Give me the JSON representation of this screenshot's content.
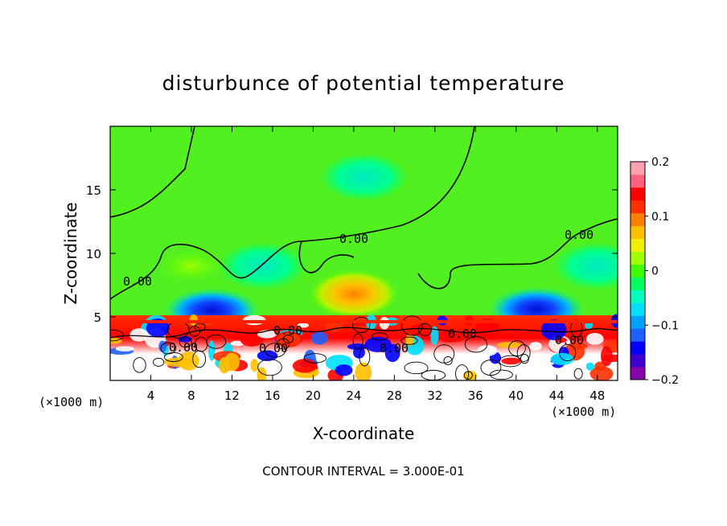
{
  "chart_data": {
    "type": "heatmap",
    "title": "disturbunce of potential temperature",
    "xlabel": "X-coordinate",
    "ylabel": "Z-coordinate",
    "x_unit": "(×1000 m)",
    "x_unit_right": "(×1000 m)",
    "footer": "CONTOUR INTERVAL = 3.000E-01",
    "xlim": [
      0,
      50
    ],
    "ylim": [
      0,
      20
    ],
    "x_ticks": [
      4,
      8,
      12,
      16,
      20,
      24,
      28,
      32,
      36,
      40,
      44,
      48
    ],
    "x_tick_labels": [
      "4",
      "8",
      "12",
      "16",
      "20",
      "24",
      "28",
      "32",
      "36",
      "40",
      "44",
      "48"
    ],
    "y_ticks": [
      5,
      10,
      15
    ],
    "y_tick_labels": [
      "5",
      "10",
      "15"
    ],
    "colorbar": {
      "range": [
        -0.2,
        0.2
      ],
      "ticks": [
        0.2,
        0.1,
        0,
        -0.1,
        -0.2
      ],
      "tick_labels": [
        "0.2",
        "0.1",
        "0",
        "−0.1",
        "−0.2"
      ],
      "colors": [
        "#8800aa",
        "#4000d0",
        "#0000ff",
        "#2060ff",
        "#00a0ff",
        "#00e0ff",
        "#00ffc0",
        "#00ff60",
        "#40ff00",
        "#a0ff00",
        "#f0f000",
        "#ffc000",
        "#ff8000",
        "#ff3000",
        "#ff0000",
        "#ff6080",
        "#ffa0b0"
      ]
    },
    "contour_labels": [
      "0.00",
      "0.00",
      "0.00",
      "0.00",
      "0.00",
      "0.00",
      "0.00",
      "0.00",
      "0.00"
    ],
    "features": [
      {
        "x": 10,
        "z": 5.5,
        "value": -0.18
      },
      {
        "x": 24,
        "z": 6.8,
        "value": 0.1
      },
      {
        "x": 42,
        "z": 5.6,
        "value": -0.18
      },
      {
        "x": 25,
        "z": 16,
        "value": -0.04
      },
      {
        "x": 15,
        "z": 9,
        "value": -0.05
      },
      {
        "x": 48,
        "z": 9,
        "value": -0.06
      },
      {
        "x": 8,
        "z": 9,
        "value": 0.04
      }
    ]
  }
}
